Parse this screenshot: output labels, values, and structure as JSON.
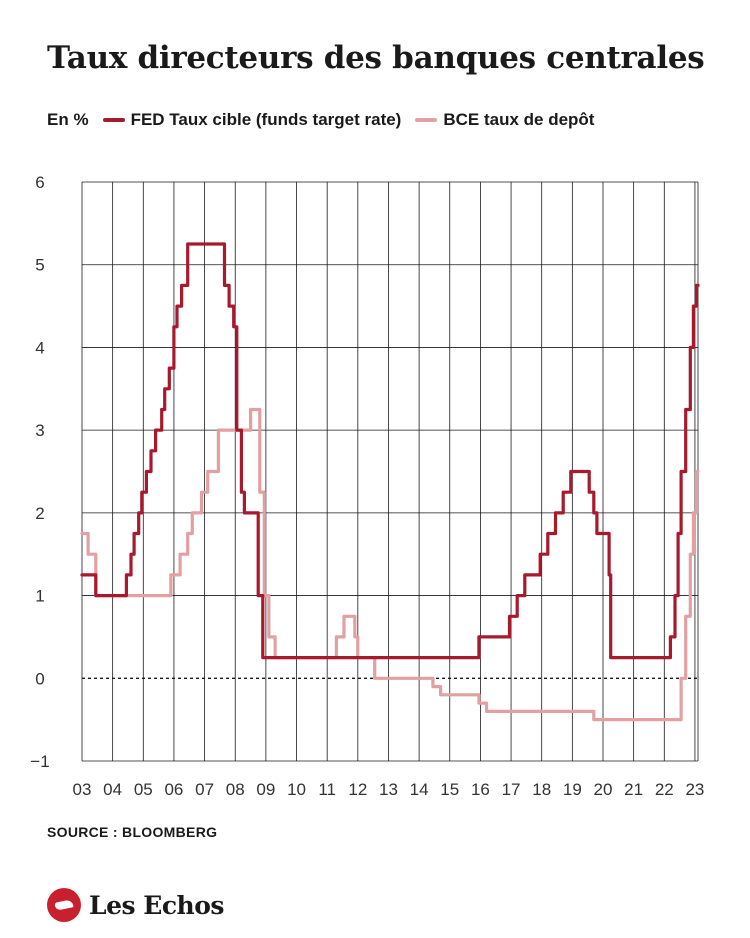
{
  "header": {
    "title": "Taux directeurs des banques centrales"
  },
  "legend": {
    "unit": "En %"
  },
  "source": "SOURCE : BLOOMBERG",
  "brand": {
    "name": "Les Echos",
    "logo_icon": "les-echos-bird-icon",
    "color": "#c8202f"
  },
  "chart_data": {
    "type": "line",
    "yticks": [
      "6",
      "5",
      "4",
      "3",
      "2",
      "1",
      "0",
      "−1"
    ],
    "ytick_values": [
      6,
      5,
      4,
      3,
      2,
      1,
      0,
      -1
    ],
    "ylim": [
      -1,
      6
    ],
    "xlim": [
      2003,
      2023.1
    ],
    "xticks": [
      "03",
      "04",
      "05",
      "06",
      "07",
      "08",
      "09",
      "10",
      "11",
      "12",
      "13",
      "14",
      "15",
      "16",
      "17",
      "18",
      "19",
      "20",
      "21",
      "22",
      "23"
    ],
    "xtick_values": [
      2003,
      2004,
      2005,
      2006,
      2007,
      2008,
      2009,
      2010,
      2011,
      2012,
      2013,
      2014,
      2015,
      2016,
      2017,
      2018,
      2019,
      2020,
      2021,
      2022,
      2023
    ],
    "grid": true,
    "zero_line": "dotted",
    "series": [
      {
        "name": "FED Taux cible (funds target rate)",
        "color": "#a8192e",
        "step": true,
        "points": [
          [
            2003.0,
            1.25
          ],
          [
            2003.45,
            1.0
          ],
          [
            2004.45,
            1.25
          ],
          [
            2004.6,
            1.5
          ],
          [
            2004.7,
            1.75
          ],
          [
            2004.85,
            2.0
          ],
          [
            2004.95,
            2.25
          ],
          [
            2005.1,
            2.5
          ],
          [
            2005.25,
            2.75
          ],
          [
            2005.4,
            3.0
          ],
          [
            2005.6,
            3.25
          ],
          [
            2005.7,
            3.5
          ],
          [
            2005.85,
            3.75
          ],
          [
            2006.0,
            4.25
          ],
          [
            2006.1,
            4.5
          ],
          [
            2006.25,
            4.75
          ],
          [
            2006.45,
            5.25
          ],
          [
            2007.65,
            4.75
          ],
          [
            2007.8,
            4.5
          ],
          [
            2007.95,
            4.25
          ],
          [
            2008.05,
            3.0
          ],
          [
            2008.2,
            2.25
          ],
          [
            2008.3,
            2.0
          ],
          [
            2008.75,
            1.0
          ],
          [
            2008.9,
            0.25
          ],
          [
            2015.95,
            0.5
          ],
          [
            2016.95,
            0.75
          ],
          [
            2017.2,
            1.0
          ],
          [
            2017.45,
            1.25
          ],
          [
            2017.95,
            1.5
          ],
          [
            2018.2,
            1.75
          ],
          [
            2018.45,
            2.0
          ],
          [
            2018.7,
            2.25
          ],
          [
            2018.95,
            2.5
          ],
          [
            2019.55,
            2.25
          ],
          [
            2019.7,
            2.0
          ],
          [
            2019.8,
            1.75
          ],
          [
            2020.2,
            1.25
          ],
          [
            2020.25,
            0.25
          ],
          [
            2022.2,
            0.5
          ],
          [
            2022.35,
            1.0
          ],
          [
            2022.45,
            1.75
          ],
          [
            2022.55,
            2.5
          ],
          [
            2022.7,
            3.25
          ],
          [
            2022.85,
            4.0
          ],
          [
            2022.95,
            4.5
          ],
          [
            2023.05,
            4.75
          ],
          [
            2023.1,
            4.75
          ]
        ]
      },
      {
        "name": "BCE taux de depôt",
        "color": "#e3a0a3",
        "step": true,
        "points": [
          [
            2003.0,
            1.75
          ],
          [
            2003.2,
            1.5
          ],
          [
            2003.45,
            1.0
          ],
          [
            2005.9,
            1.25
          ],
          [
            2006.2,
            1.5
          ],
          [
            2006.45,
            1.75
          ],
          [
            2006.6,
            2.0
          ],
          [
            2006.9,
            2.25
          ],
          [
            2007.1,
            2.5
          ],
          [
            2007.45,
            3.0
          ],
          [
            2008.5,
            3.25
          ],
          [
            2008.8,
            2.25
          ],
          [
            2008.95,
            1.0
          ],
          [
            2009.1,
            0.5
          ],
          [
            2009.3,
            0.25
          ],
          [
            2011.3,
            0.5
          ],
          [
            2011.55,
            0.75
          ],
          [
            2011.9,
            0.5
          ],
          [
            2012.0,
            0.25
          ],
          [
            2012.55,
            0.0
          ],
          [
            2014.45,
            -0.1
          ],
          [
            2014.7,
            -0.2
          ],
          [
            2015.95,
            -0.3
          ],
          [
            2016.2,
            -0.4
          ],
          [
            2019.7,
            -0.5
          ],
          [
            2022.55,
            0.0
          ],
          [
            2022.7,
            0.75
          ],
          [
            2022.85,
            1.5
          ],
          [
            2022.95,
            2.0
          ],
          [
            2023.05,
            2.5
          ],
          [
            2023.1,
            2.5
          ]
        ]
      }
    ]
  }
}
